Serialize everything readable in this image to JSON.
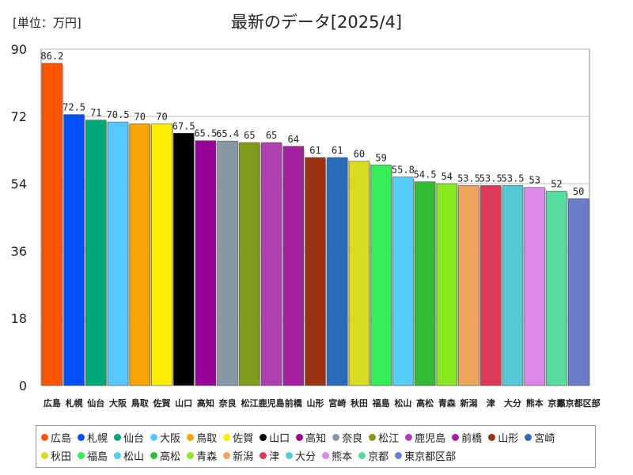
{
  "header": {
    "unit_label": "[単位：万円]",
    "title": "最新のデータ[2025/4]"
  },
  "chart_data": {
    "type": "bar",
    "title": "最新のデータ[2025/4]",
    "ylabel": "[単位：万円]",
    "ylim": [
      0,
      90
    ],
    "yticks": [
      0,
      18,
      36,
      54,
      72,
      90
    ],
    "grid": true,
    "legend_position": "bottom",
    "categories": [
      "広島",
      "札幌",
      "仙台",
      "大阪",
      "鳥取",
      "佐賀",
      "山口",
      "高知",
      "奈良",
      "松江",
      "鹿児島",
      "前橋",
      "山形",
      "宮崎",
      "秋田",
      "福島",
      "松山",
      "高松",
      "青森",
      "新潟",
      "津",
      "大分",
      "熊本",
      "京都",
      "東京都区部"
    ],
    "values": [
      86.2,
      72.5,
      71,
      70.5,
      70,
      70,
      67.5,
      65.5,
      65.4,
      65,
      65,
      64,
      61,
      61,
      60,
      59,
      55.8,
      54.5,
      54,
      53.5,
      53.5,
      53.5,
      53,
      52,
      50
    ],
    "value_labels": [
      "86.2",
      "72.5",
      "71",
      "70.5",
      "70",
      "70",
      "67.5",
      "65.5",
      "65.4",
      "65",
      "65",
      "64",
      "61",
      "61",
      "60",
      "59",
      "55.8",
      "54.5",
      "54",
      "53.5",
      "53.5",
      "53.5",
      "53",
      "52",
      "50"
    ],
    "colors": [
      "#ff5500",
      "#0050ff",
      "#00a878",
      "#55c8ff",
      "#f7a400",
      "#ffee00",
      "#000000",
      "#990099",
      "#8899a6",
      "#809a1a",
      "#b040b0",
      "#a020a0",
      "#993311",
      "#2a6bb8",
      "#d8dc20",
      "#33ee55",
      "#55ccf5",
      "#33bb33",
      "#88e822",
      "#eea45a",
      "#dd3a5a",
      "#55c8d8",
      "#dd88e8",
      "#55dda0",
      "#6a7dc8"
    ]
  }
}
